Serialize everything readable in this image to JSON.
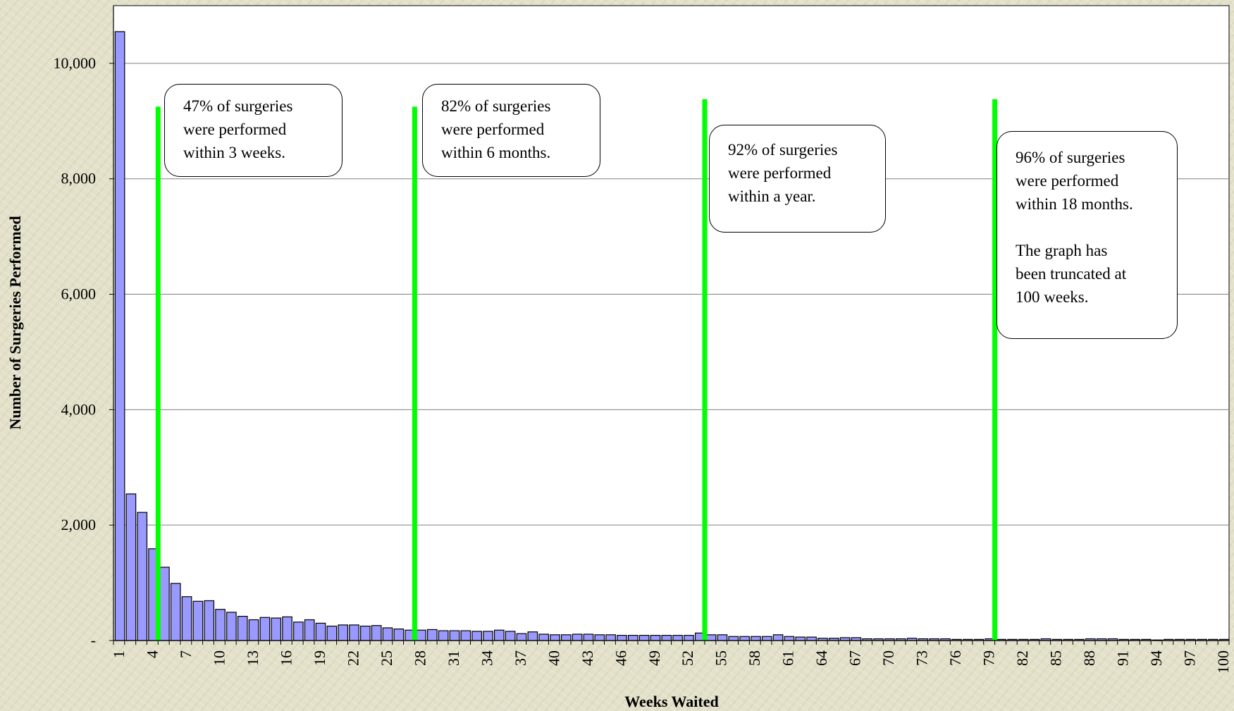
{
  "chart_data": {
    "type": "bar",
    "title": "",
    "xlabel": "Weeks Waited",
    "ylabel": "Number of Surgeries Performed",
    "ylim": [
      0,
      11000
    ],
    "y_ticks": [
      0,
      2000,
      4000,
      6000,
      8000,
      10000
    ],
    "y_tick_labels": [
      "-",
      "2,000",
      "4,000",
      "6,000",
      "8,000",
      "10,000"
    ],
    "grid": "horizontal",
    "bar_color": "#9999ff",
    "marker_color": "#00ff00",
    "x": [
      1,
      2,
      3,
      4,
      5,
      6,
      7,
      8,
      9,
      10,
      11,
      12,
      13,
      14,
      15,
      16,
      17,
      18,
      19,
      20,
      21,
      22,
      23,
      24,
      25,
      26,
      27,
      28,
      29,
      30,
      31,
      32,
      33,
      34,
      35,
      36,
      37,
      38,
      39,
      40,
      41,
      42,
      43,
      44,
      45,
      46,
      47,
      48,
      49,
      50,
      51,
      52,
      53,
      54,
      55,
      56,
      57,
      58,
      59,
      60,
      61,
      62,
      63,
      64,
      65,
      66,
      67,
      68,
      69,
      70,
      71,
      72,
      73,
      74,
      75,
      76,
      77,
      78,
      79,
      80,
      81,
      82,
      83,
      84,
      85,
      86,
      87,
      88,
      89,
      90,
      91,
      92,
      93,
      94,
      95,
      96,
      97,
      98,
      99,
      100
    ],
    "x_tick_labels": [
      "1",
      "4",
      "7",
      "10",
      "13",
      "16",
      "19",
      "22",
      "25",
      "28",
      "31",
      "34",
      "37",
      "40",
      "43",
      "46",
      "49",
      "52",
      "55",
      "58",
      "61",
      "64",
      "67",
      "70",
      "73",
      "76",
      "79",
      "82",
      "85",
      "88",
      "91",
      "94",
      "97",
      "100"
    ],
    "values": [
      10550,
      2540,
      2220,
      1590,
      1270,
      990,
      760,
      680,
      690,
      540,
      490,
      420,
      360,
      400,
      390,
      410,
      320,
      360,
      300,
      250,
      270,
      270,
      250,
      260,
      220,
      200,
      180,
      180,
      190,
      170,
      170,
      170,
      160,
      160,
      180,
      160,
      120,
      150,
      110,
      100,
      100,
      110,
      110,
      100,
      100,
      90,
      90,
      90,
      90,
      90,
      90,
      90,
      130,
      100,
      100,
      70,
      70,
      70,
      70,
      100,
      70,
      60,
      60,
      40,
      40,
      50,
      50,
      30,
      30,
      30,
      30,
      40,
      30,
      30,
      30,
      20,
      20,
      20,
      30,
      20,
      20,
      20,
      20,
      30,
      20,
      20,
      20,
      30,
      30,
      30,
      20,
      20,
      20,
      10,
      20,
      20,
      20,
      20,
      20,
      20
    ],
    "reference_lines": [
      {
        "x": 4.5,
        "top": 9250
      },
      {
        "x": 27.5,
        "top": 9250
      },
      {
        "x": 53.5,
        "top": 9380
      },
      {
        "x": 79.5,
        "top": 9380
      }
    ],
    "annotations": [
      {
        "lines": [
          "47% of surgeries",
          "were performed",
          "within 3 weeks."
        ]
      },
      {
        "lines": [
          "82% of surgeries",
          "were performed",
          "within 6 months."
        ]
      },
      {
        "lines": [
          "92% of surgeries",
          "were performed",
          "within a year."
        ]
      },
      {
        "lines": [
          "96% of surgeries",
          "were performed",
          "within 18 months.",
          "",
          "The graph has",
          "been truncated at",
          "100 weeks."
        ]
      }
    ]
  }
}
